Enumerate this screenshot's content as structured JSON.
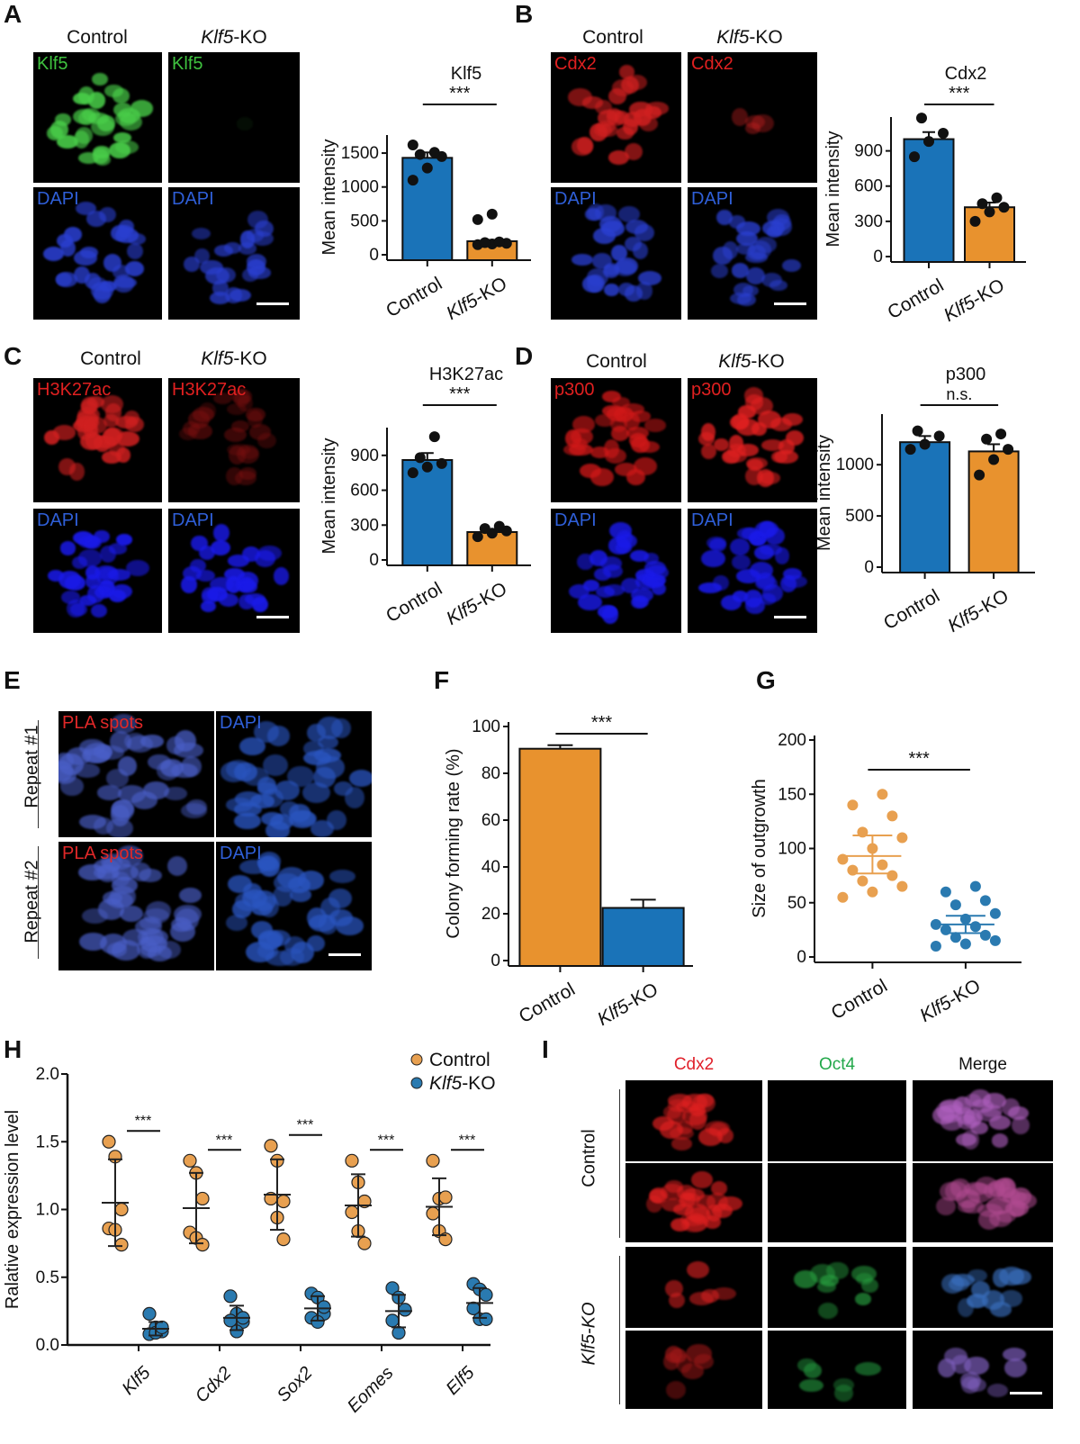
{
  "panels": {
    "A": "A",
    "B": "B",
    "C": "C",
    "D": "D",
    "E": "E",
    "F": "F",
    "G": "G",
    "H": "H",
    "I": "I"
  },
  "groups": {
    "control": "Control",
    "ko_gene": "Klf5",
    "ko_suffix": "-KO"
  },
  "images": {
    "A": {
      "top": "Klf5",
      "bottom": "DAPI",
      "top_color": "#3fc23f"
    },
    "B": {
      "top": "Cdx2",
      "bottom": "DAPI",
      "top_color": "#e02020"
    },
    "C": {
      "top": "H3K27ac",
      "bottom": "DAPI",
      "top_color": "#e02020"
    },
    "D": {
      "top": "p300",
      "bottom": "DAPI",
      "top_color": "#e02020"
    },
    "E": {
      "left": "PLA spots",
      "right": "DAPI",
      "row1": "Repeat #1",
      "row2": "Repeat #2"
    },
    "I": {
      "cols": [
        "Cdx2",
        "Oct4",
        "Merge"
      ],
      "rows": [
        "Control",
        "Klf5-KO"
      ],
      "col_colors": [
        "#e0202a",
        "#22a84a",
        "#111111"
      ]
    }
  },
  "colors": {
    "control_bar": "#1a73b8",
    "ko_bar": "#e8922e",
    "control_dot": "#e8a050",
    "ko_dot": "#2a7ab0",
    "dapi": "#2f5fd8"
  },
  "chart_data": [
    {
      "id": "A",
      "type": "bar",
      "title": "Klf5",
      "ylabel": "Mean intensity",
      "ylim": [
        0,
        1700
      ],
      "yticks": [
        0,
        500,
        1000,
        1500
      ],
      "categories": [
        "Control",
        "Klf5-KO"
      ],
      "values": [
        1430,
        200
      ],
      "errors": [
        80,
        20
      ],
      "points": [
        [
          1100,
          1280,
          1450,
          1480,
          1510,
          1620
        ],
        [
          150,
          160,
          170,
          180,
          190,
          520,
          600
        ]
      ],
      "significance": "***"
    },
    {
      "id": "B",
      "type": "bar",
      "title": "Cdx2",
      "ylabel": "Mean intensity",
      "ylim": [
        0,
        1150
      ],
      "yticks": [
        0,
        300,
        600,
        900
      ],
      "categories": [
        "Control",
        "Klf5-KO"
      ],
      "values": [
        1000,
        420
      ],
      "errors": [
        60,
        40
      ],
      "points": [
        [
          850,
          980,
          1050,
          1180
        ],
        [
          300,
          380,
          420,
          450,
          500
        ]
      ],
      "significance": "***"
    },
    {
      "id": "C",
      "type": "bar",
      "title": "H3K27ac",
      "ylabel": "Mean intensity",
      "ylim": [
        0,
        1100
      ],
      "yticks": [
        0,
        300,
        600,
        900
      ],
      "categories": [
        "Control",
        "Klf5-KO"
      ],
      "values": [
        860,
        240
      ],
      "errors": [
        60,
        20
      ],
      "points": [
        [
          750,
          800,
          830,
          880,
          1060
        ],
        [
          200,
          230,
          250,
          270,
          290
        ]
      ],
      "significance": "***"
    },
    {
      "id": "D",
      "type": "bar",
      "title": "p300",
      "ylabel": "Mean intensity",
      "ylim": [
        0,
        1450
      ],
      "yticks": [
        0,
        500,
        1000
      ],
      "categories": [
        "Control",
        "Klf5-KO"
      ],
      "values": [
        1220,
        1130
      ],
      "errors": [
        60,
        70
      ],
      "points": [
        [
          1150,
          1200,
          1280,
          1330
        ],
        [
          900,
          1050,
          1150,
          1250,
          1300
        ]
      ],
      "significance": "n.s."
    },
    {
      "id": "F",
      "type": "bar",
      "title": "",
      "ylabel": "Colony forming rate (%)",
      "ylim": [
        0,
        100
      ],
      "yticks": [
        0,
        20,
        40,
        60,
        80,
        100
      ],
      "categories": [
        "Control",
        "Klf5-KO"
      ],
      "values": [
        90.5,
        22.5
      ],
      "errors": [
        1.5,
        3.5
      ],
      "points": [
        [],
        []
      ],
      "significance": "***"
    },
    {
      "id": "G",
      "type": "scatter",
      "ylabel": "Size of outgrowth",
      "ylim": [
        0,
        200
      ],
      "yticks": [
        0,
        50,
        100,
        150,
        200
      ],
      "categories": [
        "Control",
        "Klf5-KO"
      ],
      "means": [
        93,
        30
      ],
      "sem": [
        [
          77,
          112
        ],
        [
          22,
          38
        ]
      ],
      "points": [
        [
          55,
          60,
          65,
          70,
          75,
          80,
          85,
          90,
          100,
          110,
          115,
          130,
          140,
          150
        ],
        [
          10,
          12,
          15,
          18,
          20,
          25,
          28,
          30,
          35,
          40,
          48,
          52,
          60,
          65
        ]
      ],
      "significance": "***"
    },
    {
      "id": "H",
      "type": "scatter",
      "ylabel": "Ralative expression level",
      "ylim": [
        0,
        2.0
      ],
      "yticks": [
        "0.0",
        "0.5",
        "1.0",
        "1.5",
        "2.0"
      ],
      "categories": [
        "Klf5",
        "Cdx2",
        "Sox2",
        "Eomes",
        "Elf5"
      ],
      "legend": [
        "Control",
        "Klf5-KO"
      ],
      "legend_position": "top-right",
      "series": [
        {
          "name": "Control",
          "means": [
            1.05,
            1.01,
            1.11,
            1.03,
            1.02
          ],
          "sd": [
            0.32,
            0.26,
            0.26,
            0.23,
            0.21
          ],
          "points": [
            [
              1.5,
              1.39,
              1.0,
              0.86,
              0.85,
              0.74
            ],
            [
              1.36,
              1.27,
              1.08,
              0.83,
              0.79,
              0.74
            ],
            [
              1.47,
              1.36,
              1.06,
              1.08,
              0.94,
              0.78
            ],
            [
              1.36,
              1.2,
              1.06,
              0.98,
              0.84,
              0.75
            ],
            [
              1.36,
              1.08,
              1.09,
              0.97,
              0.84,
              0.78
            ]
          ]
        },
        {
          "name": "Klf5-KO",
          "means": [
            0.12,
            0.2,
            0.27,
            0.25,
            0.31
          ],
          "sd": [
            0.05,
            0.09,
            0.09,
            0.12,
            0.11
          ],
          "points": [
            [
              0.23,
              0.13,
              0.1,
              0.08,
              0.09,
              0.13
            ],
            [
              0.36,
              0.23,
              0.17,
              0.18,
              0.1,
              0.2
            ],
            [
              0.38,
              0.35,
              0.23,
              0.2,
              0.17,
              0.28
            ],
            [
              0.42,
              0.35,
              0.26,
              0.18,
              0.09,
              0.26
            ],
            [
              0.45,
              0.41,
              0.37,
              0.27,
              0.19,
              0.19
            ]
          ]
        }
      ],
      "significance": [
        "***",
        "***",
        "***",
        "***",
        "***"
      ]
    }
  ]
}
